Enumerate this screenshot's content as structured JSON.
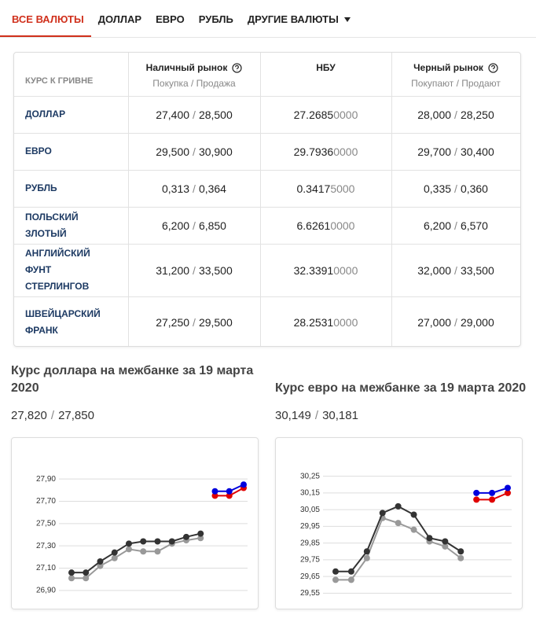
{
  "tabs": {
    "items": [
      "ВСЕ ВАЛЮТЫ",
      "ДОЛЛАР",
      "ЕВРО",
      "РУБЛЬ",
      "ДРУГИЕ ВАЛЮТЫ"
    ],
    "active": 0
  },
  "table": {
    "corner": "КУРС К ГРИВНЕ",
    "separator": "/",
    "headers": [
      {
        "title": "Наличный рынок",
        "sub": "Покупка / Продажа"
      },
      {
        "title": "НБУ"
      },
      {
        "title": "Черный рынок",
        "sub": "Покупают / Продают"
      }
    ],
    "rows": [
      {
        "name": "ДОЛЛАР",
        "cash": [
          "27,400",
          "28,500"
        ],
        "nbu": {
          "main": "27.2685",
          "tail": "0000"
        },
        "black": [
          "28,000",
          "28,250"
        ]
      },
      {
        "name": "ЕВРО",
        "cash": [
          "29,500",
          "30,900"
        ],
        "nbu": {
          "main": "29.7936",
          "tail": "0000"
        },
        "black": [
          "29,700",
          "30,400"
        ]
      },
      {
        "name": "РУБЛЬ",
        "cash": [
          "0,313",
          "0,364"
        ],
        "nbu": {
          "main": "0.3417",
          "tail": "5000"
        },
        "black": [
          "0,335",
          "0,360"
        ]
      },
      {
        "name": "ПОЛЬСКИЙ ЗЛОТЫЙ",
        "cash": [
          "6,200",
          "6,850"
        ],
        "nbu": {
          "main": "6.6261",
          "tail": "0000"
        },
        "black": [
          "6,200",
          "6,570"
        ]
      },
      {
        "name": "АНГЛИЙСКИЙ ФУНТ СТЕРЛИНГОВ",
        "cash": [
          "31,200",
          "33,500"
        ],
        "nbu": {
          "main": "32.3391",
          "tail": "0000"
        },
        "black": [
          "32,000",
          "33,500"
        ]
      },
      {
        "name": "ШВЕЙЦАРСКИЙ ФРАНК",
        "cash": [
          "27,250",
          "29,500"
        ],
        "nbu": {
          "main": "28.2531",
          "tail": "0000"
        },
        "black": [
          "27,000",
          "29,000"
        ]
      }
    ]
  },
  "chart_data": [
    {
      "type": "line",
      "title": "Курс доллара на межбанке за 19 марта 2020",
      "subtitle": [
        "27,820",
        "27,850"
      ],
      "categories": [
        null,
        null,
        null,
        null,
        null,
        null,
        null,
        null,
        null,
        null,
        null,
        null,
        null
      ],
      "series": [
        {
          "color": "#999999",
          "values": [
            27.01,
            27.01,
            27.12,
            27.19,
            27.27,
            27.25,
            27.25,
            27.32,
            27.35,
            27.37,
            null,
            null,
            null
          ]
        },
        {
          "color": "#333333",
          "values": [
            27.06,
            27.06,
            27.16,
            27.24,
            27.32,
            27.34,
            27.34,
            27.34,
            27.38,
            27.41,
            null,
            null,
            null
          ]
        },
        {
          "color": "#e00000",
          "values": [
            null,
            null,
            null,
            null,
            null,
            null,
            null,
            null,
            null,
            null,
            27.75,
            27.75,
            27.82
          ]
        },
        {
          "color": "#0000dd",
          "values": [
            null,
            null,
            null,
            null,
            null,
            null,
            null,
            null,
            null,
            null,
            27.79,
            27.79,
            27.85
          ]
        }
      ],
      "ylim": [
        26.8,
        28.0
      ],
      "yticks": [
        {
          "value": 26.9,
          "label": "26,90"
        },
        {
          "value": 27.1,
          "label": "27,10"
        },
        {
          "value": 27.3,
          "label": "27,30"
        },
        {
          "value": 27.5,
          "label": "27,50"
        },
        {
          "value": 27.7,
          "label": "27,70"
        },
        {
          "value": 27.9,
          "label": "27,90"
        }
      ],
      "grid": true
    },
    {
      "type": "line",
      "title": "Курс евро на межбанке за 19 марта 2020",
      "subtitle": [
        "30,149",
        "30,181"
      ],
      "categories": [
        null,
        null,
        null,
        null,
        null,
        null,
        null,
        null,
        null,
        null,
        null,
        null
      ],
      "series": [
        {
          "color": "#999999",
          "values": [
            29.63,
            29.63,
            29.76,
            30.0,
            29.97,
            29.93,
            29.86,
            29.83,
            29.76,
            null,
            null,
            null
          ]
        },
        {
          "color": "#333333",
          "values": [
            29.68,
            29.68,
            29.8,
            30.03,
            30.07,
            30.02,
            29.88,
            29.86,
            29.8,
            null,
            null,
            null
          ]
        },
        {
          "color": "#e00000",
          "values": [
            null,
            null,
            null,
            null,
            null,
            null,
            null,
            null,
            null,
            30.11,
            30.11,
            30.15
          ]
        },
        {
          "color": "#0000dd",
          "values": [
            null,
            null,
            null,
            null,
            null,
            null,
            null,
            null,
            null,
            30.15,
            30.15,
            30.18
          ]
        }
      ],
      "ylim": [
        29.5,
        30.3
      ],
      "yticks": [
        {
          "value": 29.55,
          "label": "29,55"
        },
        {
          "value": 29.65,
          "label": "29,65"
        },
        {
          "value": 29.75,
          "label": "29,75"
        },
        {
          "value": 29.85,
          "label": "29,85"
        },
        {
          "value": 29.95,
          "label": "29,95"
        },
        {
          "value": 30.05,
          "label": "30,05"
        },
        {
          "value": 30.15,
          "label": "30,15"
        },
        {
          "value": 30.25,
          "label": "30,25"
        }
      ],
      "grid": true
    }
  ]
}
